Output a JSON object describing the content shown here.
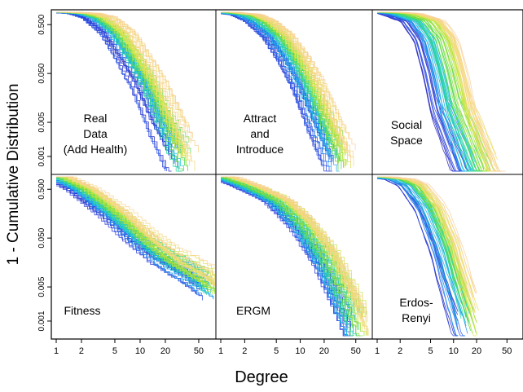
{
  "figure": {
    "ylabel": "1 - Cumulative Distribution",
    "xlabel": "Degree"
  },
  "axes": {
    "x_scale": "log",
    "y_scale": "log",
    "x_ticks": [
      1,
      2,
      5,
      10,
      20,
      50
    ],
    "y_ticks": [
      0.5,
      0.05,
      0.005,
      0.001
    ],
    "y_tick_labels": [
      "0.500",
      "0.050",
      "0.005",
      "0.001"
    ],
    "x_range": [
      1,
      70
    ],
    "y_range": [
      0.0005,
      0.8
    ]
  },
  "palette": [
    "#2a1fb0",
    "#2b4be6",
    "#1e8ef0",
    "#19c2e0",
    "#2fd9a0",
    "#4fd84a",
    "#9fe03a",
    "#d8e84a",
    "#f5d878",
    "#f9cf9a"
  ],
  "chart_data": [
    {
      "type": "line",
      "title": "Real Data (Add Health)",
      "label_lines": [
        "Real",
        "Data",
        "(Add Health)"
      ],
      "grid": false,
      "series_count": 60,
      "median_curve": {
        "x": [
          1,
          2,
          3,
          5,
          8,
          12,
          20,
          30
        ],
        "y": [
          0.9,
          0.85,
          0.7,
          0.35,
          0.1,
          0.03,
          0.004,
          0.001
        ]
      },
      "x_extent": [
        1,
        30
      ]
    },
    {
      "type": "line",
      "title": "Attract and Introduce",
      "label_lines": [
        "Attract",
        "and",
        "Introduce"
      ],
      "grid": false,
      "series_count": 60,
      "median_curve": {
        "x": [
          1,
          2,
          3,
          5,
          8,
          12,
          20,
          30
        ],
        "y": [
          0.9,
          0.8,
          0.6,
          0.3,
          0.1,
          0.03,
          0.004,
          0.001
        ]
      },
      "x_extent": [
        1,
        30
      ]
    },
    {
      "type": "line",
      "title": "Social Space",
      "label_lines": [
        "Social",
        "Space"
      ],
      "grid": false,
      "series_count": 70,
      "median_curve": {
        "x": [
          1,
          2,
          4,
          6,
          8,
          10,
          15,
          20
        ],
        "y": [
          0.9,
          0.85,
          0.6,
          0.25,
          0.05,
          0.01,
          0.002,
          0.0006
        ]
      },
      "x_extent": [
        1,
        25
      ]
    },
    {
      "type": "line",
      "title": "Fitness",
      "label_lines": [
        "Fitness"
      ],
      "grid": false,
      "series_count": 60,
      "median_curve": {
        "x": [
          1,
          2,
          5,
          10,
          20,
          50,
          70
        ],
        "y": [
          0.9,
          0.5,
          0.15,
          0.05,
          0.02,
          0.008,
          0.005
        ]
      },
      "x_extent": [
        1,
        70
      ]
    },
    {
      "type": "line",
      "title": "ERGM",
      "label_lines": [
        "ERGM"
      ],
      "grid": false,
      "series_count": 60,
      "median_curve": {
        "x": [
          1,
          2,
          5,
          10,
          20,
          30,
          50
        ],
        "y": [
          0.9,
          0.6,
          0.3,
          0.1,
          0.02,
          0.005,
          0.0008
        ]
      },
      "x_extent": [
        1,
        50
      ]
    },
    {
      "type": "line",
      "title": "Erdos-Renyi",
      "label_lines": [
        "Erdos-",
        "Renyi"
      ],
      "grid": false,
      "series_count": 60,
      "median_curve": {
        "x": [
          1,
          2,
          3,
          5,
          8,
          10,
          15
        ],
        "y": [
          0.9,
          0.8,
          0.6,
          0.2,
          0.03,
          0.008,
          0.001
        ]
      },
      "x_extent": [
        1,
        15
      ]
    }
  ]
}
